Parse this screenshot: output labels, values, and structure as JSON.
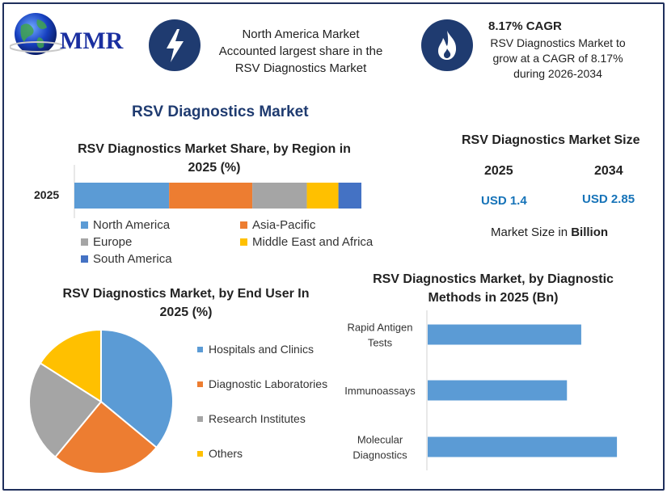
{
  "brand": {
    "logo_text": "MMR",
    "colors": {
      "navy": "#1f3b70",
      "logo_blue": "#1a2fa0",
      "value_blue": "#1673b8"
    }
  },
  "highlights": [
    {
      "icon": "lightning-icon",
      "text_lines": [
        "North America Market",
        "Accounted largest share in the",
        "RSV Diagnostics Market"
      ]
    },
    {
      "icon": "flame-icon",
      "title": "8.17% CAGR",
      "text_lines": [
        "RSV Diagnostics Market to",
        "grow at a CAGR of 8.17%",
        "during 2026-2034"
      ]
    }
  ],
  "main_title": "RSV Diagnostics Market",
  "market_size": {
    "title": "RSV Diagnostics Market Size",
    "years": [
      {
        "year": "2025",
        "value": "USD 1.4"
      },
      {
        "year": "2034",
        "value": "USD 2.85"
      }
    ],
    "note_prefix": "Market Size in ",
    "note_bold": "Billion"
  },
  "chart_data": [
    {
      "id": "region-share",
      "type": "bar",
      "stacked": true,
      "orientation": "horizontal",
      "title_lines": [
        "RSV Diagnostics Market Share, by Region in",
        "2025 (%)"
      ],
      "categories": [
        "2025"
      ],
      "series": [
        {
          "name": "North America",
          "values": [
            33
          ],
          "color": "#5b9bd5"
        },
        {
          "name": "Asia-Pacific",
          "values": [
            29
          ],
          "color": "#ed7d31"
        },
        {
          "name": "Europe",
          "values": [
            19
          ],
          "color": "#a5a5a5"
        },
        {
          "name": "Middle East and Africa",
          "values": [
            11
          ],
          "color": "#ffc000"
        },
        {
          "name": "South America",
          "values": [
            8
          ],
          "color": "#4472c4"
        }
      ],
      "xlim": [
        0,
        100
      ],
      "grid": false,
      "legend": "bottom"
    },
    {
      "id": "end-user",
      "type": "pie",
      "title_lines": [
        "RSV Diagnostics Market, by End User In",
        "2025 (%)"
      ],
      "categories": [
        "Hospitals and Clinics",
        "Diagnostic Laboratories",
        "Research Institutes",
        "Others"
      ],
      "values": [
        36,
        25,
        23,
        16
      ],
      "colors": [
        "#5b9bd5",
        "#ed7d31",
        "#a5a5a5",
        "#ffc000"
      ],
      "legend": "right"
    },
    {
      "id": "diagnostic-methods",
      "type": "bar",
      "orientation": "horizontal",
      "title_lines": [
        "RSV Diagnostics Market, by Diagnostic",
        "Methods in 2025 (Bn)"
      ],
      "categories": [
        {
          "lines": [
            "Rapid Antigen",
            "Tests"
          ]
        },
        {
          "lines": [
            "Immunoassays"
          ]
        },
        {
          "lines": [
            "Molecular",
            "Diagnostics"
          ]
        }
      ],
      "values": [
        0.43,
        0.39,
        0.53
      ],
      "xlim": [
        0,
        0.6
      ],
      "color": "#5b9bd5",
      "grid": false
    }
  ]
}
